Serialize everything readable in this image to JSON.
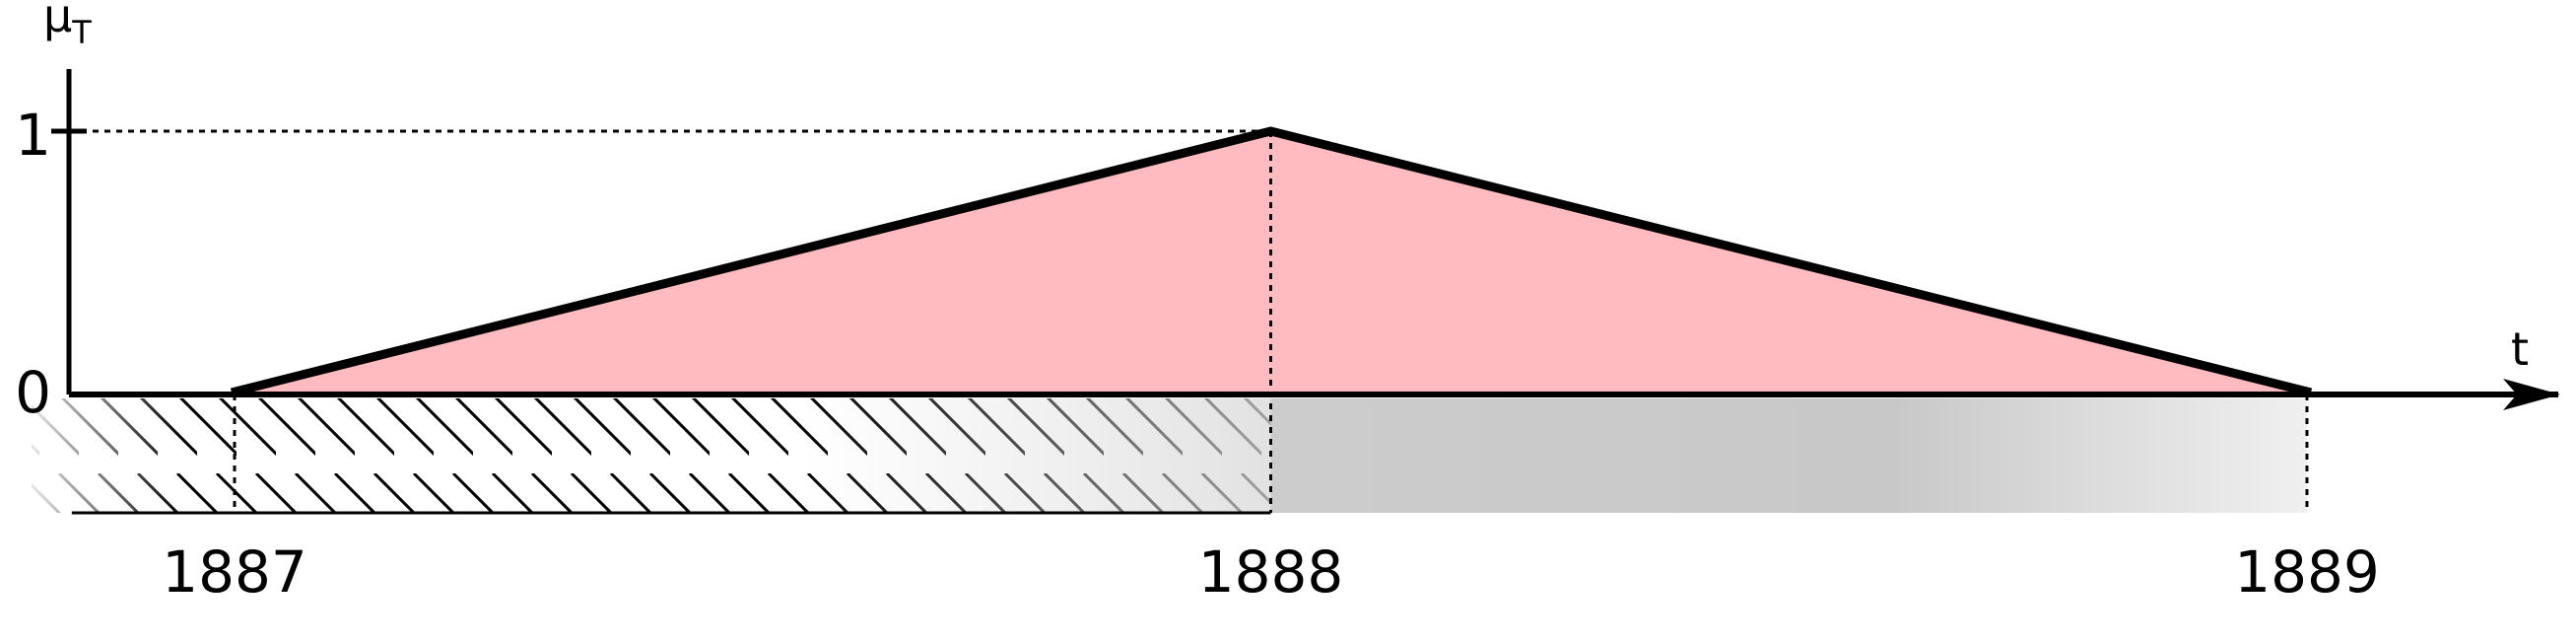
{
  "axes": {
    "y_label": "μ",
    "y_label_subscript": "T",
    "x_label": "t",
    "y_ticks": [
      "0",
      "1"
    ],
    "x_ticks": [
      "1887",
      "1888",
      "1889"
    ]
  },
  "membership_function": {
    "type": "triangular",
    "start": 1887,
    "peak": 1888,
    "end": 1889,
    "peak_value": 1,
    "fill_color": "#ffbbbf",
    "line_color": "#000000"
  },
  "regions": {
    "hatched": {
      "from": 1886.9,
      "to": 1888
    },
    "gray": {
      "from": 1888,
      "to": 1889,
      "color": "#c8c8c8"
    }
  }
}
